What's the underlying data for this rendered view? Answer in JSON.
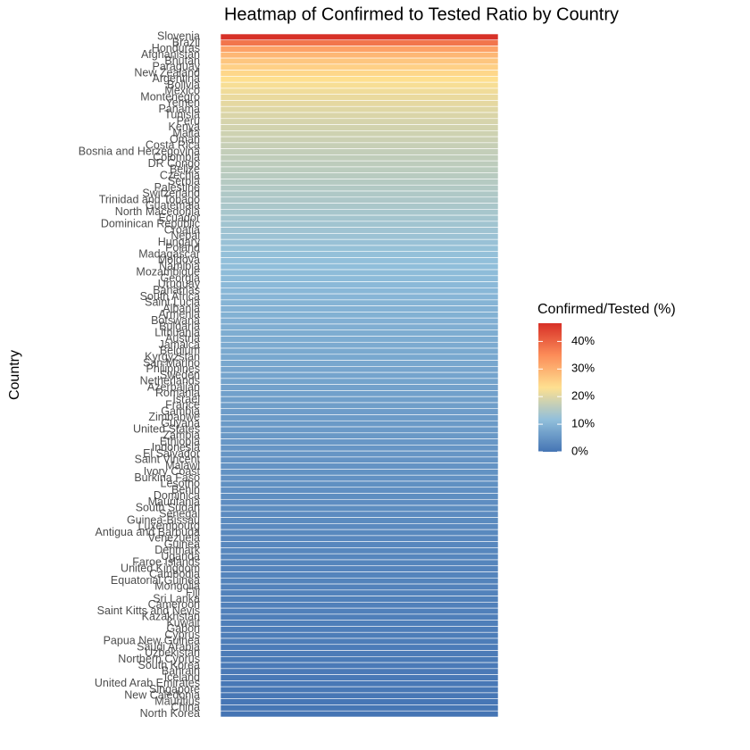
{
  "chart_data": {
    "type": "heatmap",
    "title": "Heatmap of Confirmed to Tested Ratio by Country",
    "y_label": "Country",
    "legend_title": "Confirmed/Tested (%)",
    "categories": [
      "Slovenia",
      "Brazil",
      "Honduras",
      "Afghanistan",
      "Bhutan",
      "Paraguay",
      "New Zealand",
      "Argentina",
      "Bolivia",
      "Mexico",
      "Montenegro",
      "Yemen",
      "Panama",
      "Tunisia",
      "Peru",
      "Kenya",
      "Malta",
      "Oman",
      "Costa Rica",
      "Bosnia and Herzegovina",
      "Colombia",
      "DR Congo",
      "Belize",
      "Czechia",
      "Serbia",
      "Palestine",
      "Switzerland",
      "Trinidad and Tobago",
      "Guatemala",
      "North Macedonia",
      "Ecuador",
      "Dominican Republic",
      "Croatia",
      "Nepal",
      "Hungary",
      "Poland",
      "Madagascar",
      "Moldova",
      "Namibia",
      "Mozambique",
      "Georgia",
      "Uruguay",
      "Bahamas",
      "South Africa",
      "Saint Lucia",
      "Albania",
      "Armenia",
      "Botswana",
      "Bulgaria",
      "Lithuania",
      "Austria",
      "Jamaica",
      "Belgium",
      "Kyrgyzstan",
      "San Marino",
      "Philippines",
      "Sweden",
      "Netherlands",
      "Azerbaijan",
      "Romania",
      "Israel",
      "France",
      "Gambia",
      "Zimbabwe",
      "Guyana",
      "United States",
      "Zambia",
      "Ethiopia",
      "Indonesia",
      "El Salvador",
      "Saint Vincent",
      "Malawi",
      "Ivory Coast",
      "Burkina Faso",
      "Lesotho",
      "Benin",
      "Dominica",
      "Mauritania",
      "South Sudan",
      "Senegal",
      "Guinea-Bissau",
      "Luxembourg",
      "Antigua and Barbuda",
      "Venezuela",
      "Guinea",
      "Denmark",
      "Uganda",
      "Faroe Islands",
      "United Kingdom",
      "Cambodia",
      "Equatorial Guinea",
      "Mongolia",
      "Fiji",
      "Sri Lanka",
      "Cameroon",
      "Saint Kitts and Nevis",
      "Kazakhstan",
      "Kuwait",
      "Gabon",
      "Cyprus",
      "Papua New Guinea",
      "Saudi Arabia",
      "Uzbekistan",
      "Northern Cyprus",
      "South Korea",
      "Bahrain",
      "Iceland",
      "United Arab Emirates",
      "Singapore",
      "New Caledonia",
      "Mauritius",
      "China",
      "North Korea"
    ],
    "values": [
      46.5,
      38,
      32,
      29,
      27,
      25.5,
      24.5,
      23.5,
      22.5,
      21.8,
      21.2,
      20.6,
      20,
      19.5,
      19,
      18.6,
      18.2,
      17.8,
      17.4,
      17,
      16.7,
      16.4,
      16.1,
      15.8,
      15.5,
      15.2,
      14.9,
      14.6,
      14.3,
      14,
      13.7,
      13.4,
      13.1,
      12.8,
      12.5,
      12.2,
      12,
      11.8,
      11.5,
      11.2,
      11,
      10.7,
      10.4,
      10.1,
      9.9,
      9.6,
      9.4,
      9.2,
      9,
      8.8,
      8.6,
      8.4,
      8.2,
      8,
      7.8,
      7.6,
      7.4,
      7.2,
      7,
      6.8,
      6.6,
      6.4,
      6.2,
      6,
      5.8,
      5.6,
      5.5,
      5.3,
      5.1,
      5,
      4.8,
      4.7,
      4.5,
      4.4,
      4.2,
      4.1,
      3.9,
      3.8,
      3.7,
      3.5,
      3.4,
      3.3,
      3.1,
      3,
      2.9,
      2.8,
      2.6,
      2.5,
      2.4,
      2.3,
      2.2,
      2.1,
      2,
      1.9,
      1.8,
      1.7,
      1.6,
      1.5,
      1.4,
      1.3,
      1.2,
      1.1,
      1,
      0.9,
      0.8,
      0.7,
      0.6,
      0.5,
      0.4,
      0.3,
      0.2,
      0.1,
      0.05
    ],
    "clim": [
      0,
      46.6
    ],
    "cticks": [
      {
        "value": 0,
        "label": "0%"
      },
      {
        "value": 10,
        "label": "10%"
      },
      {
        "value": 20,
        "label": "20%"
      },
      {
        "value": 30,
        "label": "30%"
      },
      {
        "value": 40,
        "label": "40%"
      }
    ],
    "colors": [
      "#4575b4",
      "#91bfdb",
      "#fee090",
      "#fc8d59",
      "#d73027"
    ]
  }
}
